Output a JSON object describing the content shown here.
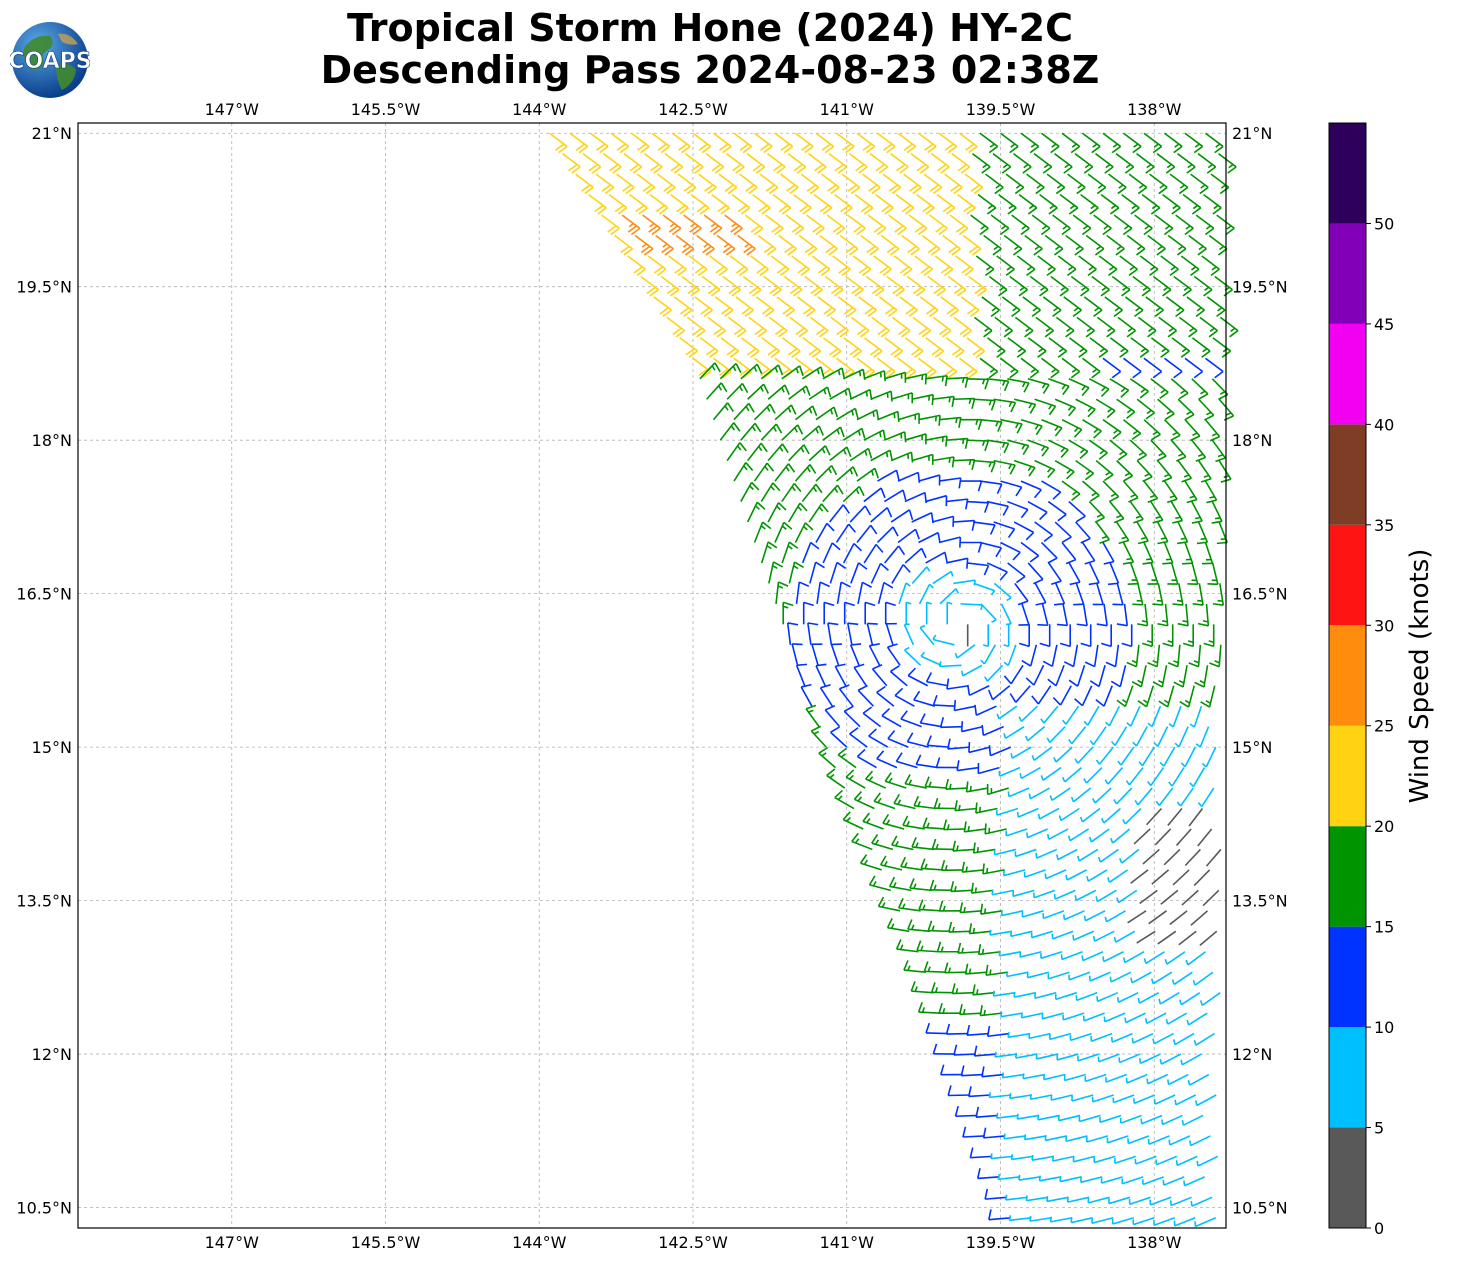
{
  "title": {
    "line1": "Tropical Storm Hone (2024) HY-2C",
    "line2": "Descending Pass 2024-08-23 02:38Z"
  },
  "logo": {
    "text": "COAPS",
    "icon": "coaps-globe-logo"
  },
  "map": {
    "lon_range": [
      -148.5,
      -137.3
    ],
    "lat_range": [
      10.3,
      21.1
    ],
    "gridlines": true,
    "lon_ticks": [
      {
        "value": -147.0,
        "label": "147°W"
      },
      {
        "value": -145.5,
        "label": "145.5°W"
      },
      {
        "value": -144.0,
        "label": "144°W"
      },
      {
        "value": -142.5,
        "label": "142.5°W"
      },
      {
        "value": -141.0,
        "label": "141°W"
      },
      {
        "value": -139.5,
        "label": "139.5°W"
      },
      {
        "value": -138.0,
        "label": "138°W"
      }
    ],
    "lat_ticks": [
      {
        "value": 21.0,
        "label": "21°N"
      },
      {
        "value": 19.5,
        "label": "19.5°N"
      },
      {
        "value": 18.0,
        "label": "18°N"
      },
      {
        "value": 16.5,
        "label": "16.5°N"
      },
      {
        "value": 15.0,
        "label": "15°N"
      },
      {
        "value": 13.5,
        "label": "13.5°N"
      },
      {
        "value": 12.0,
        "label": "12°N"
      },
      {
        "value": 10.5,
        "label": "10.5°N"
      }
    ],
    "wind_barbs": {
      "swath_west_edge": [
        [
          21.0,
          -143.9
        ],
        [
          18.8,
          -142.5
        ],
        [
          17.0,
          -141.9
        ],
        [
          15.0,
          -141.2
        ],
        [
          13.0,
          -140.3
        ],
        [
          10.5,
          -139.4
        ]
      ],
      "swath_east_edge_lon": -137.3,
      "storm_center": {
        "lat": 16.2,
        "lon": -139.9
      },
      "spacing_deg": 0.2
    }
  },
  "colorbar": {
    "label": "Wind Speed (knots)",
    "range": [
      0,
      55
    ],
    "bins": [
      {
        "min": 0,
        "max": 5,
        "color": "#595959"
      },
      {
        "min": 5,
        "max": 10,
        "color": "#00bfff"
      },
      {
        "min": 10,
        "max": 15,
        "color": "#0033ff"
      },
      {
        "min": 15,
        "max": 20,
        "color": "#009400"
      },
      {
        "min": 20,
        "max": 25,
        "color": "#ffd312"
      },
      {
        "min": 25,
        "max": 30,
        "color": "#ff8c0d"
      },
      {
        "min": 30,
        "max": 35,
        "color": "#ff1414"
      },
      {
        "min": 35,
        "max": 40,
        "color": "#7f3d26"
      },
      {
        "min": 40,
        "max": 45,
        "color": "#f200f2"
      },
      {
        "min": 45,
        "max": 50,
        "color": "#8200b8"
      },
      {
        "min": 50,
        "max": 55,
        "color": "#2e005c"
      }
    ],
    "ticks": [
      0,
      5,
      10,
      15,
      20,
      25,
      30,
      35,
      40,
      45,
      50
    ]
  }
}
